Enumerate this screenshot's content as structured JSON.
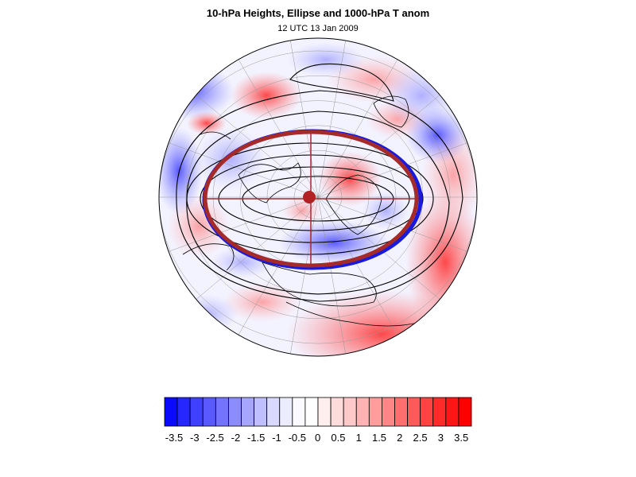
{
  "header": {
    "title": "10-hPa Heights, Ellipse and 1000-hPa T anom",
    "subtitle": "12 UTC 13 Jan 2009"
  },
  "map": {
    "projection": "polar-orthographic",
    "hemisphere": "northern",
    "field": "1000-hPa temperature anomaly (shaded)",
    "contours": "10-hPa geopotential heights (black)",
    "ellipse_colors": {
      "outline": "#a52a2a",
      "fill_edge": "#1a1adc"
    },
    "centroid_color": "#b22222"
  },
  "colorbar": {
    "labels": [
      "-3.5",
      "-3",
      "-2.5",
      "-2",
      "-1.5",
      "-1",
      "-0.5",
      "0",
      "0.5",
      "1",
      "1.5",
      "2",
      "2.5",
      "3",
      "3.5"
    ],
    "colors": [
      "#0a0aff",
      "#2626ff",
      "#4040ff",
      "#5959ff",
      "#7373ff",
      "#8c8cff",
      "#a6a6ff",
      "#bfbfff",
      "#d9d9ff",
      "#ececff",
      "#fafaff",
      "#ffffff",
      "#ffeeee",
      "#ffdcdc",
      "#ffc9c9",
      "#ffb3b3",
      "#ff9d9d",
      "#ff8686",
      "#ff6f6f",
      "#ff5959",
      "#ff4242",
      "#ff2b2b",
      "#ff1515",
      "#ff0000"
    ]
  }
}
